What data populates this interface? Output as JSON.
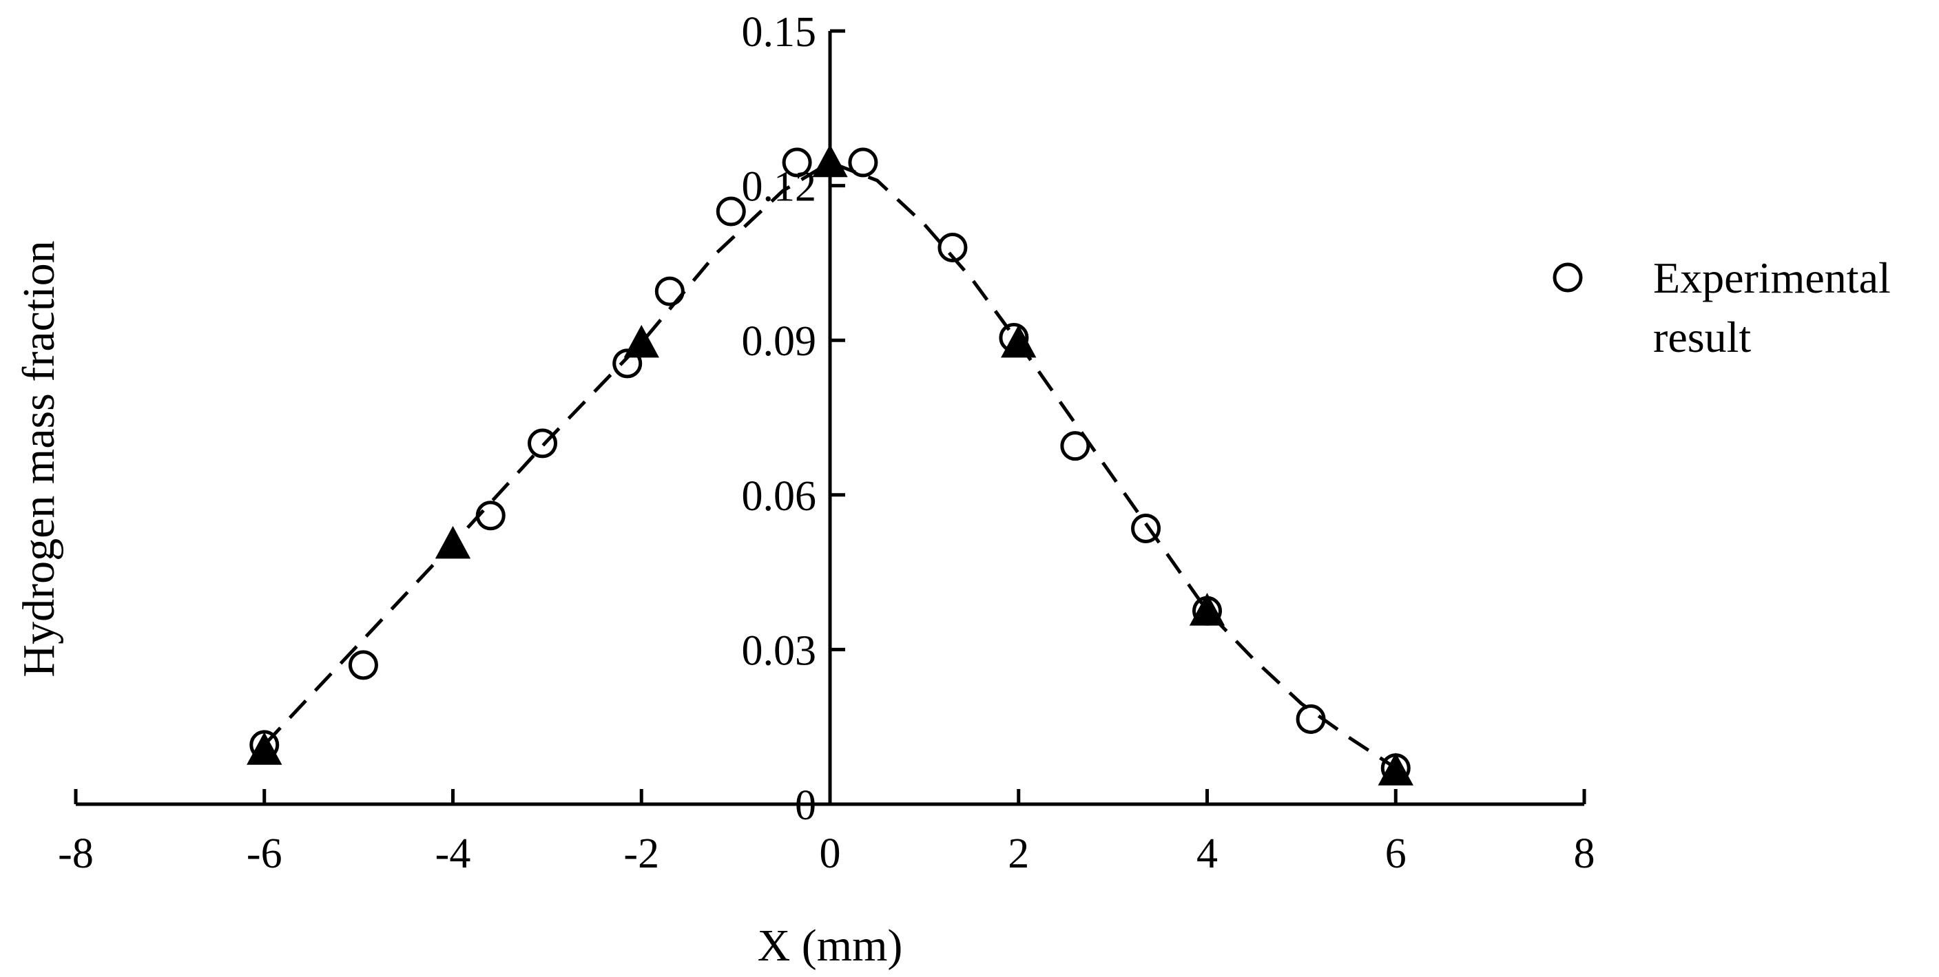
{
  "chart_data": {
    "type": "scatter",
    "xlabel": "X (mm)",
    "ylabel": "Hydrogen mass fraction",
    "xlim": [
      -8,
      8
    ],
    "ylim": [
      0,
      0.15
    ],
    "x_ticks": [
      "-8",
      "-6",
      "-4",
      "-2",
      "0",
      "2",
      "4",
      "6",
      "8"
    ],
    "y_ticks": [
      "0",
      "0.03",
      "0.06",
      "0.09",
      "0.12",
      "0.15"
    ],
    "grid": false,
    "legend_position": "right",
    "series": [
      {
        "name": "Experimental result",
        "marker": "open-circle",
        "x": [
          -6.0,
          -4.95,
          -3.6,
          -3.05,
          -2.15,
          -1.7,
          -1.05,
          -0.35,
          0.35,
          1.3,
          1.95,
          2.6,
          3.35,
          4.0,
          5.1,
          6.0
        ],
        "y": [
          0.0115,
          0.027,
          0.056,
          0.07,
          0.0855,
          0.0995,
          0.115,
          0.1245,
          0.1245,
          0.108,
          0.0905,
          0.0695,
          0.0535,
          0.0375,
          0.0165,
          0.007
        ]
      },
      {
        "marker": "filled-triangle",
        "x": [
          -6,
          -4,
          -2,
          0,
          2,
          4,
          6
        ],
        "y": [
          0.0105,
          0.0505,
          0.0895,
          0.1245,
          0.0895,
          0.0375,
          0.0065
        ]
      },
      {
        "line": "dashed",
        "x": [
          -6,
          -5,
          -4,
          -3,
          -2,
          -1.2,
          -0.5,
          0,
          0.5,
          1,
          1.5,
          2,
          2.5,
          3,
          3.5,
          4,
          4.5,
          5,
          5.5,
          6
        ],
        "y": [
          0.0115,
          0.031,
          0.0505,
          0.0705,
          0.0895,
          0.107,
          0.119,
          0.1245,
          0.121,
          0.1125,
          0.102,
          0.0895,
          0.0765,
          0.0635,
          0.0505,
          0.0375,
          0.028,
          0.0195,
          0.013,
          0.007
        ]
      }
    ]
  }
}
